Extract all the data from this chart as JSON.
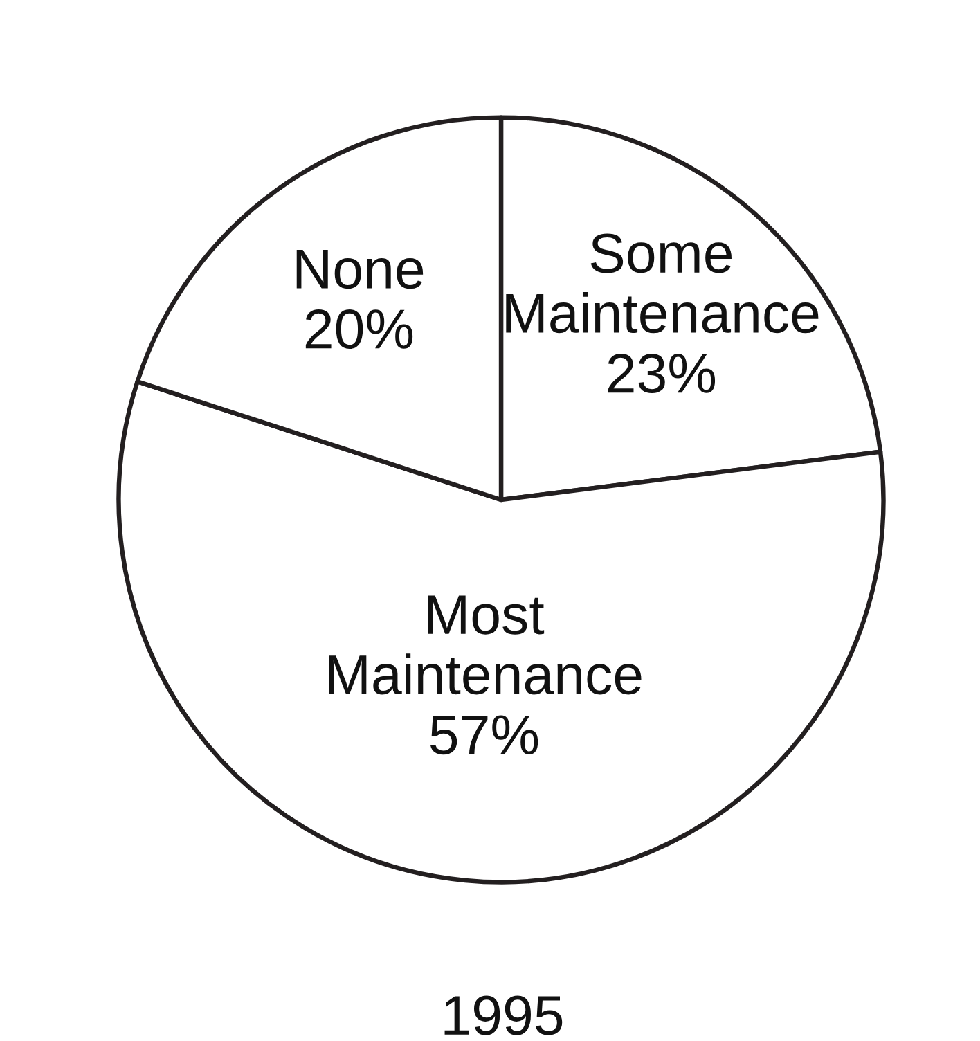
{
  "chart_data": {
    "type": "pie",
    "title": "1995",
    "categories": [
      "Some Maintenance",
      "Most Maintenance",
      "None"
    ],
    "values": [
      23,
      57,
      20
    ],
    "colors": [
      "#ffffff",
      "#ffffff",
      "#ffffff"
    ],
    "value_labels": [
      "23%",
      "57%",
      "20%"
    ]
  }
}
